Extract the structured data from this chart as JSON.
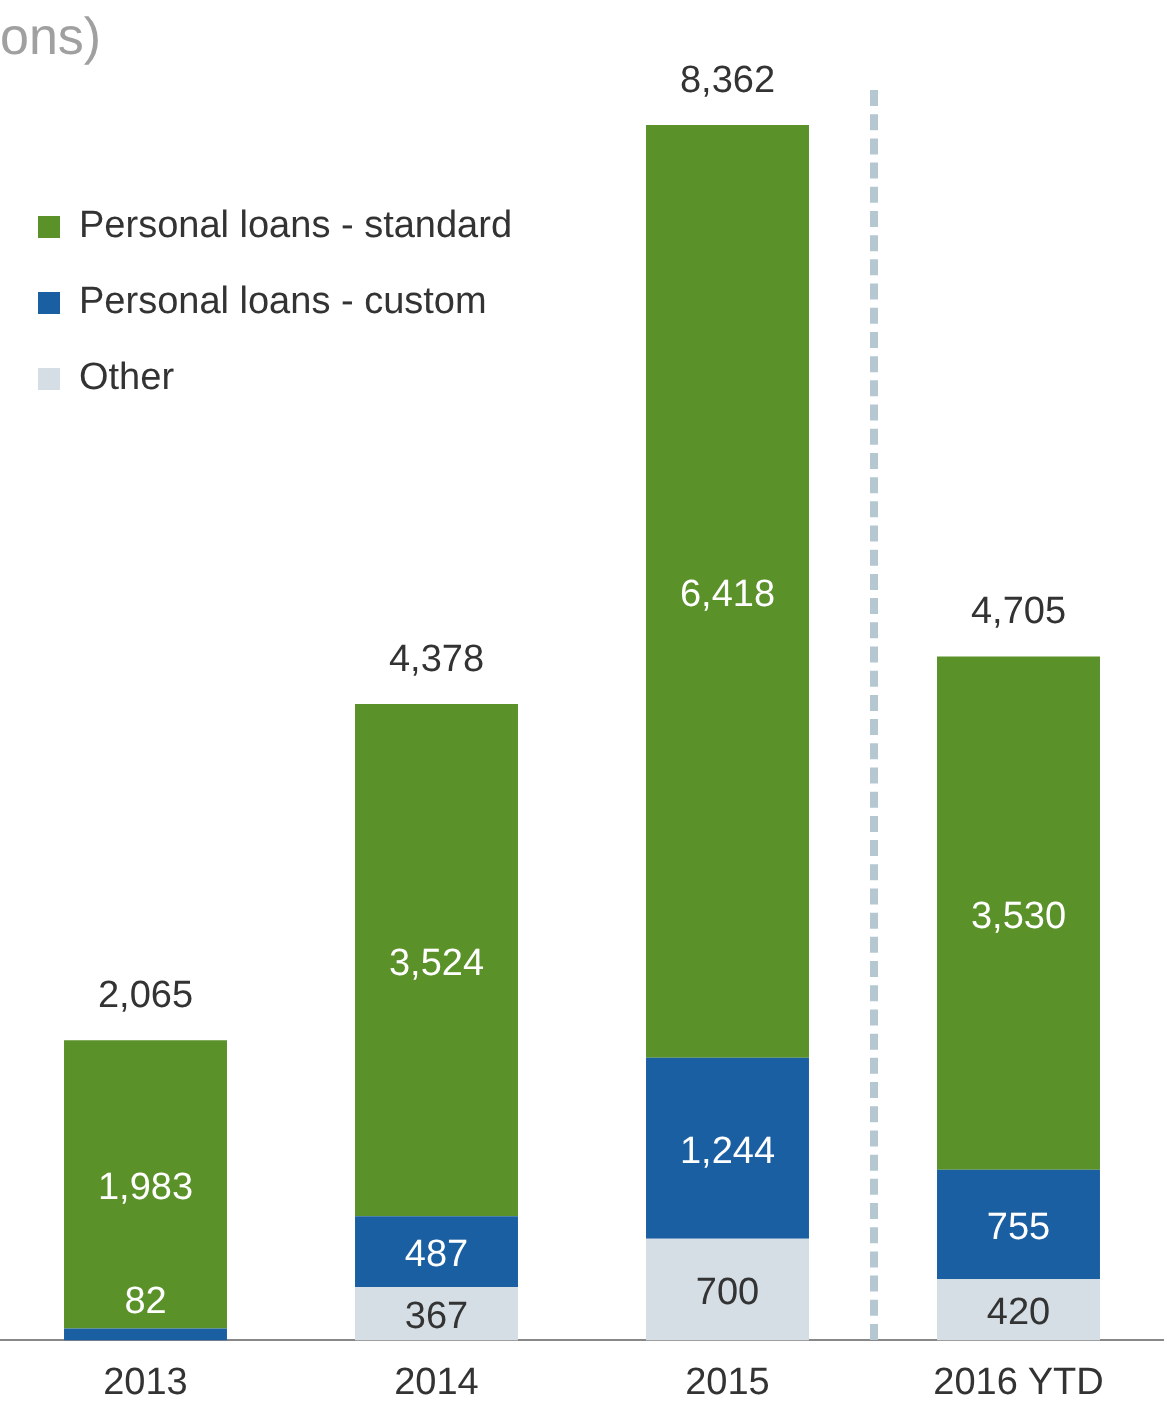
{
  "chart_data": {
    "type": "bar",
    "title": "ons)",
    "stacked": true,
    "data_labels": true,
    "legend": "top left",
    "grid": false,
    "categories": [
      "2013",
      "2014",
      "2015",
      "2016 YTD"
    ],
    "series": [
      {
        "name": "Other",
        "color": "#d5dee5",
        "values": [
          null,
          367,
          700,
          420
        ]
      },
      {
        "name": "Personal loans - custom",
        "color": "#1b5fa3",
        "values": [
          82,
          487,
          1244,
          755
        ],
        "value_labels": [
          "82",
          "487",
          "1,244",
          "755"
        ]
      },
      {
        "name": "Personal loans - standard",
        "color": "#5a9129",
        "values": [
          1983,
          3524,
          6418,
          3530
        ],
        "value_labels": [
          "1,983",
          "3,524",
          "6,418",
          "3,530"
        ]
      }
    ],
    "totals": [
      "2,065",
      "4,378",
      "8,362",
      "4,705"
    ]
  }
}
